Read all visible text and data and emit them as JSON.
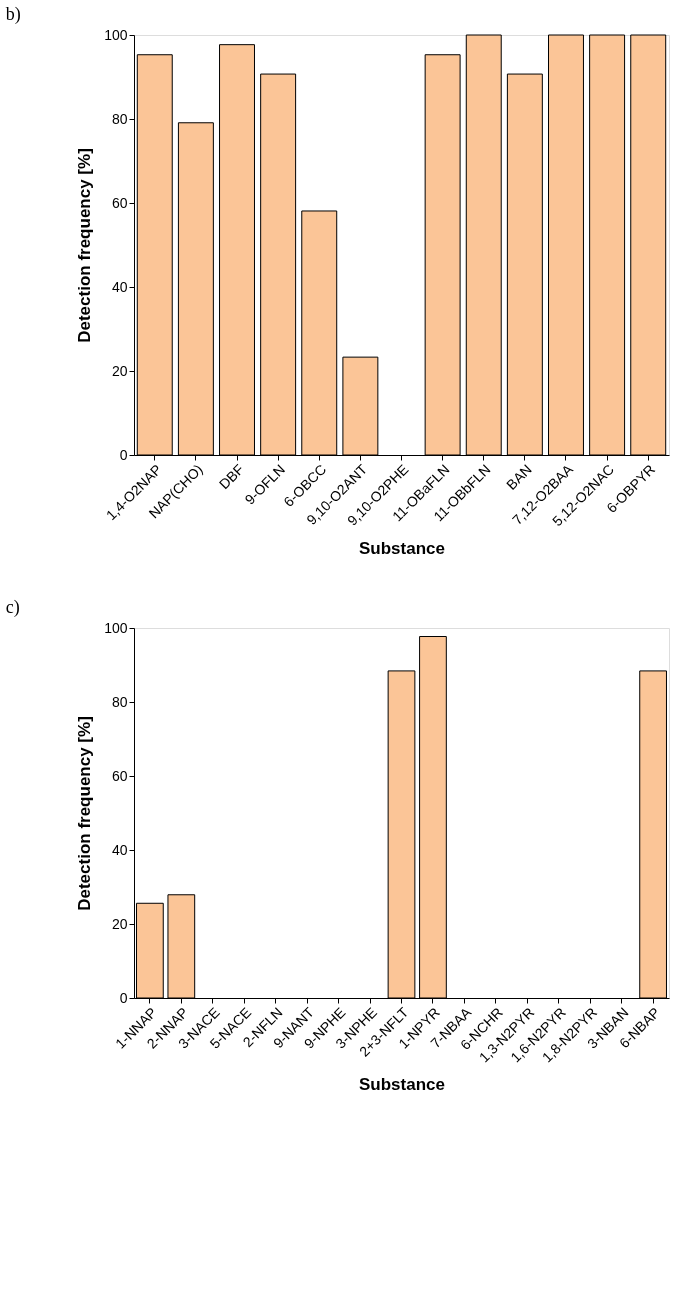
{
  "chart_data": [
    {
      "type": "bar",
      "title": "b)",
      "xlabel": "Substance",
      "ylabel": "Detection frequency [%]",
      "categories": [
        "1,4-O2NAP",
        "NAP(CHO)",
        "DBF",
        "9-OFLN",
        "6-OBCC",
        "9,10-O2ANT",
        "9,10-O2PHE",
        "11-OBaFLN",
        "11-OBbFLN",
        "BAN",
        "7,12-O2BAA",
        "5,12-O2NAC",
        "6-OBPYR"
      ],
      "values": [
        95.3,
        79.1,
        97.7,
        90.7,
        58.1,
        23.3,
        0,
        95.3,
        100,
        90.7,
        100,
        100,
        100
      ],
      "color": "#fbc597",
      "ylim": [
        0,
        100
      ],
      "yticks": [
        0,
        20,
        40,
        60,
        80,
        100
      ],
      "grid": false
    },
    {
      "type": "bar",
      "title": "c)",
      "xlabel": "Substance",
      "ylabel": "Detection frequency [%]",
      "categories": [
        "1-NNAP",
        "2-NNAP",
        "3-NACE",
        "5-NACE",
        "2-NFLN",
        "9-NANT",
        "9-NPHE",
        "3-NPHE",
        "2+3-NFLT",
        "1-NPYR",
        "7-NBAA",
        "6-NCHR",
        "1,3-N2PYR",
        "1,6-N2PYR",
        "1,8-N2PYR",
        "3-NBAN",
        "6-NBAP"
      ],
      "values": [
        25.6,
        27.9,
        0,
        0,
        0,
        0,
        0,
        0,
        88.4,
        97.7,
        0,
        0,
        0,
        0,
        0,
        0,
        88.4
      ],
      "color": "#fbc597",
      "ylim": [
        0,
        100
      ],
      "yticks": [
        0,
        20,
        40,
        60,
        80,
        100
      ],
      "grid": false
    }
  ]
}
